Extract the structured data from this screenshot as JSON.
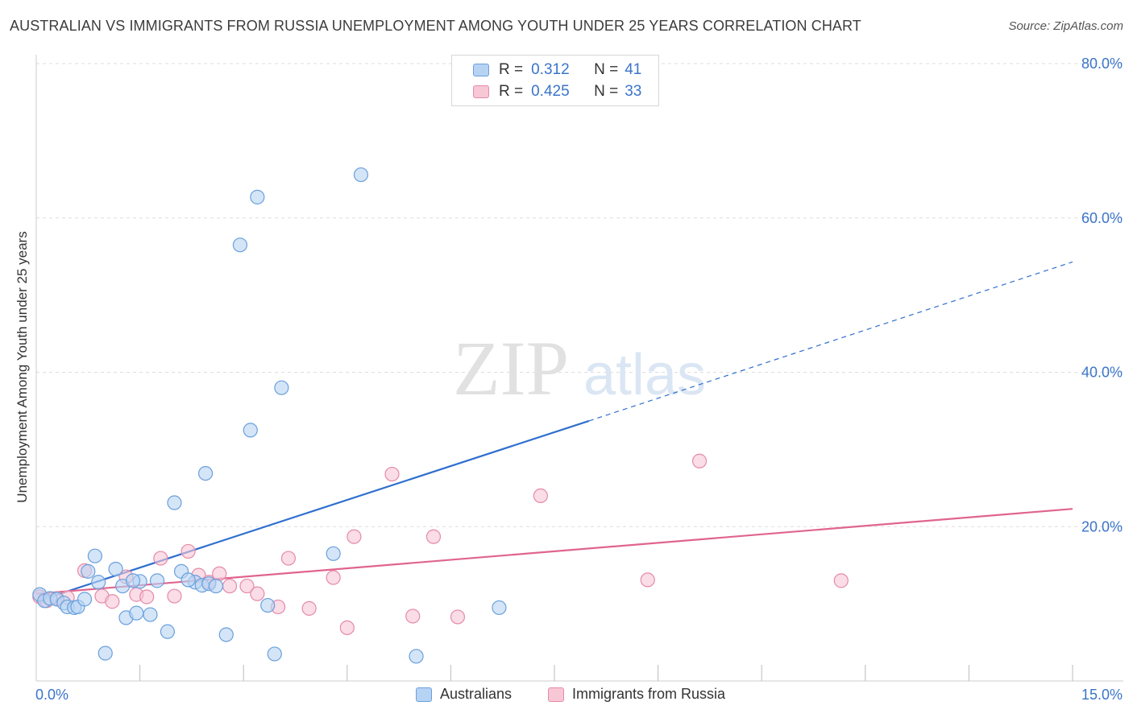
{
  "title": "AUSTRALIAN VS IMMIGRANTS FROM RUSSIA UNEMPLOYMENT AMONG YOUTH UNDER 25 YEARS CORRELATION CHART",
  "source": "Source: ZipAtlas.com",
  "watermark": {
    "zip": "ZIP",
    "atlas": "atlas"
  },
  "colors": {
    "blue_fill": "#b7d3f3",
    "blue_stroke": "#6aa0dc",
    "blue_line": "#2f6fce",
    "pink_fill": "#f7c7d6",
    "pink_stroke": "#e58aa8",
    "pink_line": "#e0648f",
    "tick_text": "#3a74c9",
    "grid": "#dddddd"
  },
  "legend": {
    "rows": [
      {
        "r_label": "R =",
        "r_value": "0.312",
        "n_label": "N =",
        "n_value": "41"
      },
      {
        "r_label": "R =",
        "r_value": "0.425",
        "n_label": "N =",
        "n_value": "33"
      }
    ]
  },
  "bottom_legend": {
    "blue": "Australians",
    "pink": "Immigrants from Russia"
  },
  "chart_data": {
    "type": "scatter",
    "title": "AUSTRALIAN VS IMMIGRANTS FROM RUSSIA UNEMPLOYMENT AMONG YOUTH UNDER 25 YEARS CORRELATION CHART",
    "xlabel": "",
    "ylabel": "Unemployment Among Youth under 25 years",
    "xlim": [
      0,
      15
    ],
    "ylim": [
      0,
      80
    ],
    "x_tick_labels": [
      "0.0%",
      "15.0%"
    ],
    "y_ticks": [
      20,
      40,
      60,
      80
    ],
    "y_tick_labels": [
      "20.0%",
      "40.0%",
      "60.0%",
      "80.0%"
    ],
    "grid": true,
    "series": [
      {
        "name": "Australians",
        "r": 0.312,
        "n": 41,
        "points": [
          [
            0.05,
            11.2
          ],
          [
            0.12,
            10.4
          ],
          [
            0.2,
            10.7
          ],
          [
            0.3,
            10.6
          ],
          [
            0.4,
            10.1
          ],
          [
            0.45,
            9.6
          ],
          [
            0.55,
            9.5
          ],
          [
            0.6,
            9.6
          ],
          [
            0.75,
            14.2
          ],
          [
            0.85,
            16.2
          ],
          [
            0.9,
            12.8
          ],
          [
            1.0,
            3.6
          ],
          [
            1.15,
            14.5
          ],
          [
            1.25,
            12.3
          ],
          [
            1.3,
            8.2
          ],
          [
            1.45,
            8.8
          ],
          [
            1.5,
            12.9
          ],
          [
            1.65,
            8.6
          ],
          [
            1.75,
            13.0
          ],
          [
            1.9,
            6.4
          ],
          [
            2.0,
            23.1
          ],
          [
            2.1,
            14.2
          ],
          [
            2.3,
            12.8
          ],
          [
            2.4,
            12.4
          ],
          [
            2.45,
            26.9
          ],
          [
            2.5,
            12.6
          ],
          [
            2.6,
            12.3
          ],
          [
            2.75,
            6.0
          ],
          [
            2.95,
            56.5
          ],
          [
            3.1,
            32.5
          ],
          [
            3.2,
            62.7
          ],
          [
            3.35,
            9.8
          ],
          [
            3.45,
            3.5
          ],
          [
            3.55,
            38.0
          ],
          [
            4.3,
            16.5
          ],
          [
            4.7,
            65.6
          ],
          [
            5.5,
            3.2
          ],
          [
            6.7,
            9.5
          ],
          [
            0.7,
            10.6
          ],
          [
            1.4,
            13.0
          ],
          [
            2.2,
            13.1
          ]
        ]
      },
      {
        "name": "Immigrants from Russia",
        "r": 0.425,
        "n": 33,
        "points": [
          [
            0.05,
            10.9
          ],
          [
            0.15,
            10.4
          ],
          [
            0.3,
            10.7
          ],
          [
            0.45,
            10.8
          ],
          [
            0.7,
            14.3
          ],
          [
            0.95,
            11.0
          ],
          [
            1.1,
            10.3
          ],
          [
            1.3,
            13.5
          ],
          [
            1.45,
            11.2
          ],
          [
            1.6,
            10.9
          ],
          [
            1.8,
            15.9
          ],
          [
            2.0,
            11.0
          ],
          [
            2.2,
            16.8
          ],
          [
            2.35,
            13.7
          ],
          [
            2.5,
            12.8
          ],
          [
            2.65,
            13.9
          ],
          [
            2.8,
            12.3
          ],
          [
            3.05,
            12.3
          ],
          [
            3.2,
            11.3
          ],
          [
            3.5,
            9.6
          ],
          [
            3.65,
            15.9
          ],
          [
            3.95,
            9.4
          ],
          [
            4.3,
            13.4
          ],
          [
            4.5,
            6.9
          ],
          [
            4.6,
            18.7
          ],
          [
            5.15,
            26.8
          ],
          [
            5.45,
            8.4
          ],
          [
            5.75,
            18.7
          ],
          [
            6.1,
            8.3
          ],
          [
            7.3,
            24.0
          ],
          [
            8.85,
            13.1
          ],
          [
            9.6,
            28.5
          ],
          [
            11.65,
            13.0
          ]
        ]
      }
    ],
    "trend_lines": [
      {
        "name": "Australians",
        "solid": [
          [
            0,
            10.3
          ],
          [
            8.0,
            33.7
          ]
        ],
        "dashed": [
          [
            8.0,
            33.7
          ],
          [
            15.0,
            54.3
          ]
        ]
      },
      {
        "name": "Immigrants from Russia",
        "solid": [
          [
            0,
            11.3
          ],
          [
            15.0,
            22.3
          ]
        ]
      }
    ]
  }
}
